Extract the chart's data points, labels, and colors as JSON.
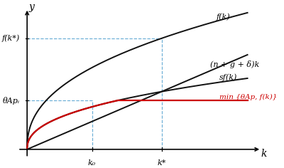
{
  "xlabel": "k",
  "ylabel": "y",
  "k0": 0.28,
  "k_star": 0.58,
  "theta_Ap": 0.35,
  "line_color": "#111111",
  "dashed_color": "#6baed6",
  "red_line_color": "#cc0000",
  "background_color": "#ffffff",
  "label_linear": "(n + g + δ)k",
  "label_f": "f(k)",
  "label_sf": "sf(k)",
  "label_red": "min {θAp, f(k)}",
  "label_fkstar": "f(k*)",
  "label_theta": "θApᵢ",
  "label_k0": "k₀",
  "label_kstar": "k*",
  "alpha_f": 0.42,
  "s_val": 0.52,
  "x_max": 0.95,
  "y_max": 0.95
}
